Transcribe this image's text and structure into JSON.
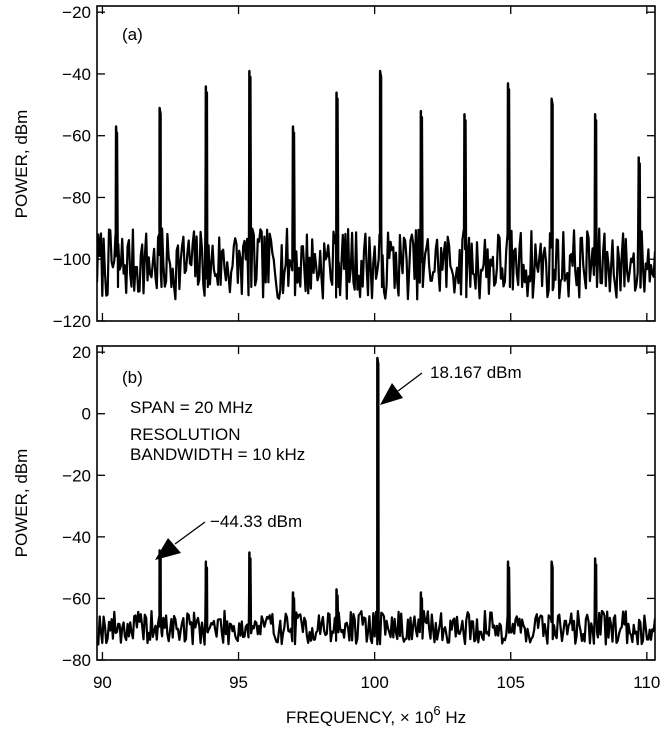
{
  "chart_data": [
    {
      "type": "line",
      "panel_label": "(a)",
      "ylabel": "POWER, dBm",
      "xlabel": "",
      "xlim": [
        89.8,
        110.3
      ],
      "ylim": [
        -120,
        -18
      ],
      "yticks": [
        -120,
        -100,
        -80,
        -60,
        -40,
        -20
      ],
      "yticklabels": [
        "−120",
        "−100",
        "−80",
        "−60",
        "−40",
        "−20"
      ],
      "xticks": [
        90,
        95,
        100,
        105,
        110
      ],
      "show_x_ticklabels": false,
      "noise_floor": {
        "min": -113,
        "max": -90
      },
      "peaks": [
        {
          "x": 90.5,
          "y": -57
        },
        {
          "x": 92.1,
          "y": -51
        },
        {
          "x": 93.8,
          "y": -44
        },
        {
          "x": 95.4,
          "y": -39
        },
        {
          "x": 97.0,
          "y": -57
        },
        {
          "x": 98.6,
          "y": -46
        },
        {
          "x": 100.2,
          "y": -39
        },
        {
          "x": 101.7,
          "y": -52
        },
        {
          "x": 103.3,
          "y": -53
        },
        {
          "x": 104.9,
          "y": -43
        },
        {
          "x": 106.5,
          "y": -48
        },
        {
          "x": 108.1,
          "y": -53
        },
        {
          "x": 109.7,
          "y": -67
        }
      ],
      "color": "#000000",
      "grid": false
    },
    {
      "type": "line",
      "panel_label": "(b)",
      "ylabel": "POWER, dBm",
      "xlabel": "FREQUENCY, × 10",
      "xlabel_exponent": "6",
      "xlabel_suffix": " Hz",
      "xlim": [
        89.8,
        110.3
      ],
      "ylim": [
        -80,
        22
      ],
      "yticks": [
        -80,
        -60,
        -40,
        -20,
        0,
        20
      ],
      "yticklabels": [
        "−80",
        "−60",
        "−40",
        "−20",
        "0",
        "20"
      ],
      "xticks": [
        90,
        95,
        100,
        105,
        110
      ],
      "xticklabels": [
        "90",
        "95",
        "100",
        "105",
        "110"
      ],
      "noise_floor": {
        "min": -75,
        "max": -64
      },
      "peaks": [
        {
          "x": 92.1,
          "y": -44.33
        },
        {
          "x": 93.8,
          "y": -48
        },
        {
          "x": 95.4,
          "y": -45
        },
        {
          "x": 97.0,
          "y": -58
        },
        {
          "x": 98.6,
          "y": -57
        },
        {
          "x": 100.1,
          "y": 18.167
        },
        {
          "x": 101.7,
          "y": -58
        },
        {
          "x": 104.9,
          "y": -48
        },
        {
          "x": 106.5,
          "y": -48
        },
        {
          "x": 108.1,
          "y": -47
        }
      ],
      "annotations": {
        "span": "SPAN = 20 MHz",
        "resolution_line1": "RESOLUTION",
        "resolution_line2": "BANDWIDTH = 10 kHz",
        "peak_main": "18.167 dBm",
        "peak_side": "−44.33 dBm"
      },
      "color": "#000000",
      "grid": false
    }
  ]
}
